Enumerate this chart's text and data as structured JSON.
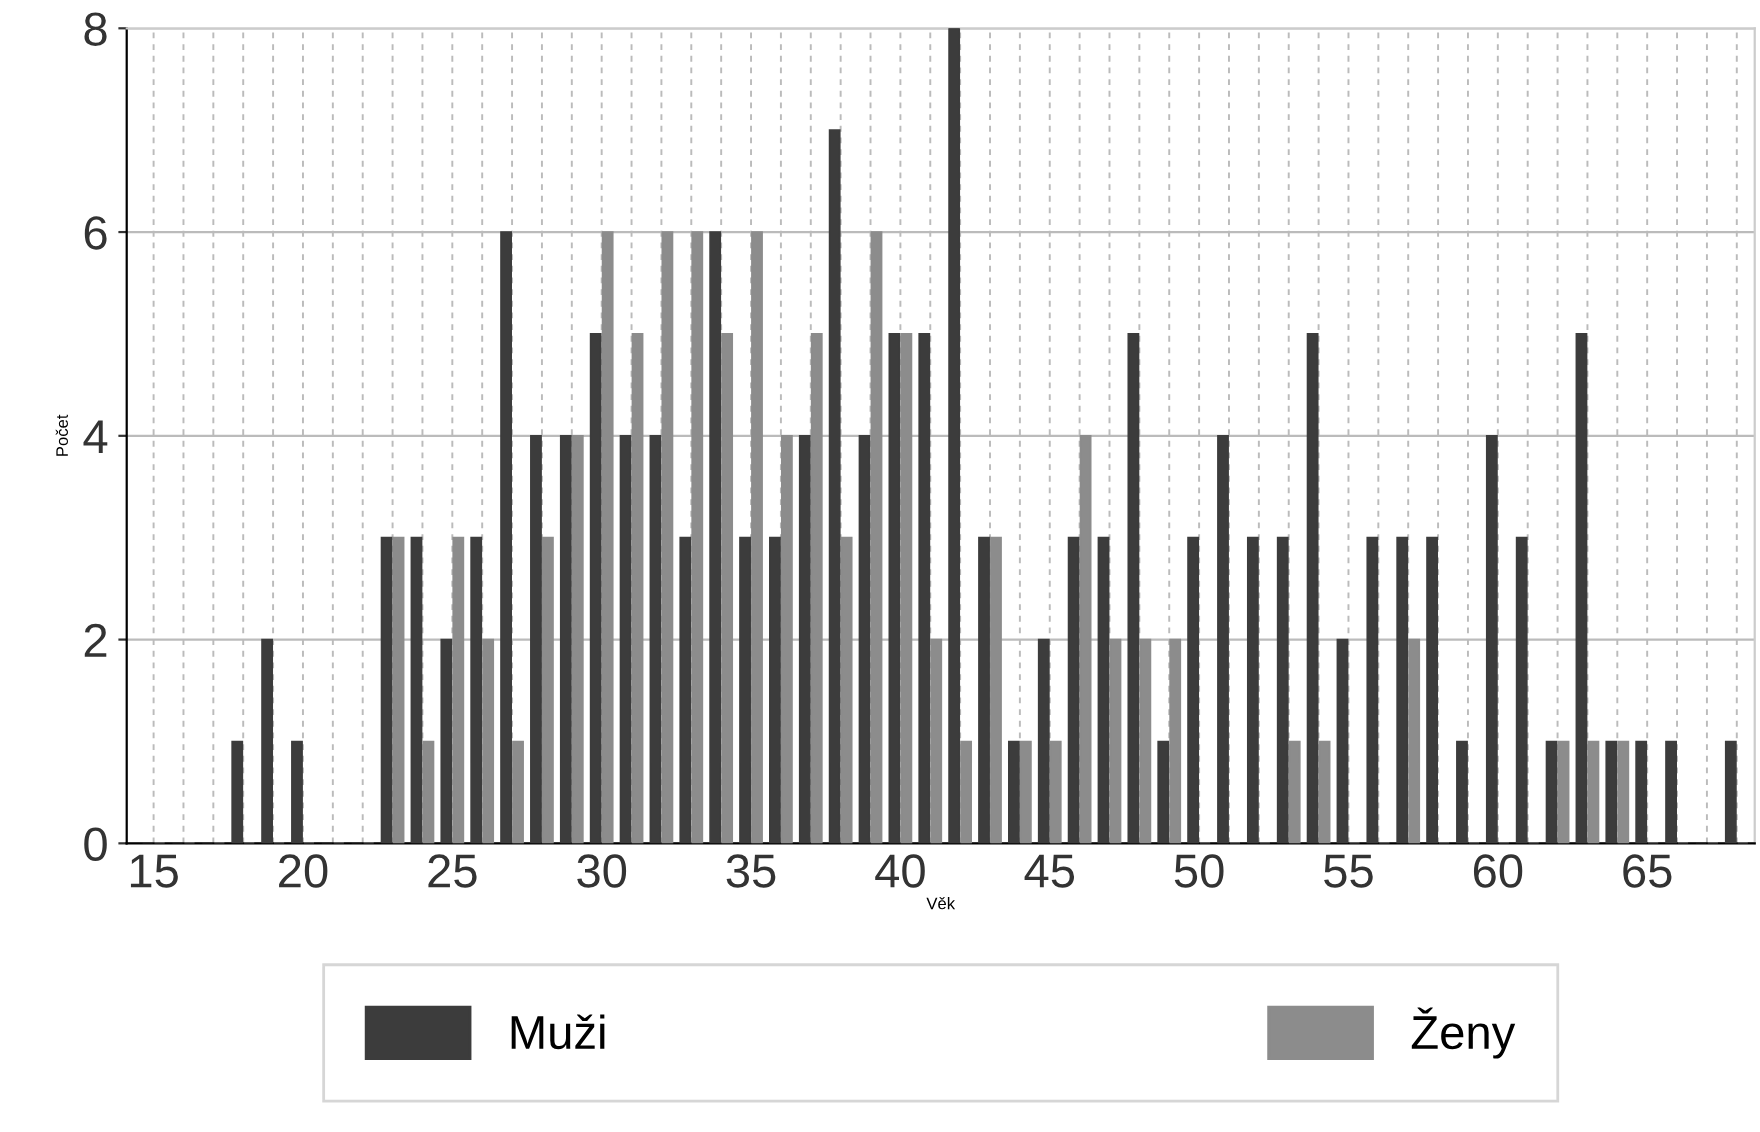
{
  "chart_data": {
    "type": "bar",
    "xlabel": "Věk",
    "ylabel": "Počet",
    "x": [
      15,
      16,
      17,
      18,
      19,
      20,
      21,
      22,
      23,
      24,
      25,
      26,
      27,
      28,
      29,
      30,
      31,
      32,
      33,
      34,
      35,
      36,
      37,
      38,
      39,
      40,
      41,
      42,
      43,
      44,
      45,
      46,
      47,
      48,
      49,
      50,
      51,
      52,
      53,
      54,
      55,
      56,
      57,
      58,
      59,
      60,
      61,
      62,
      63,
      64,
      65,
      66,
      67,
      68
    ],
    "series": [
      {
        "name": "Muži",
        "color": "#3c3c3c",
        "values": [
          0,
          0,
          0,
          1,
          2,
          1,
          0,
          0,
          3,
          3,
          2,
          3,
          6,
          4,
          4,
          5,
          4,
          4,
          3,
          6,
          3,
          3,
          4,
          7,
          4,
          5,
          5,
          8,
          3,
          1,
          2,
          3,
          3,
          5,
          1,
          3,
          4,
          3,
          3,
          5,
          2,
          3,
          3,
          3,
          1,
          4,
          3,
          1,
          5,
          1,
          1,
          1,
          0,
          1
        ]
      },
      {
        "name": "Ženy",
        "color": "#8c8c8c",
        "values": [
          0,
          0,
          0,
          0,
          0,
          0,
          0,
          0,
          3,
          1,
          3,
          2,
          1,
          3,
          4,
          6,
          5,
          6,
          6,
          5,
          6,
          4,
          5,
          3,
          6,
          5,
          2,
          1,
          3,
          1,
          1,
          4,
          2,
          2,
          2,
          0,
          0,
          0,
          1,
          1,
          0,
          0,
          2,
          0,
          0,
          0,
          0,
          1,
          1,
          1,
          0,
          0,
          0,
          0
        ]
      }
    ],
    "xlim": [
      14.1,
      68.6
    ],
    "xticks": [
      15,
      {
        "value": 16,
        "label": null
      },
      {
        "value": 17,
        "label": null
      },
      {
        "value": 18,
        "label": null
      },
      {
        "value": 19,
        "label": null
      },
      20,
      {
        "value": 21,
        "label": null
      },
      {
        "value": 22,
        "label": null
      },
      {
        "value": 23,
        "label": null
      },
      {
        "value": 24,
        "label": null
      },
      25,
      {
        "value": 26,
        "label": null
      },
      {
        "value": 27,
        "label": null
      },
      {
        "value": 28,
        "label": null
      },
      {
        "value": 29,
        "label": null
      },
      30,
      {
        "value": 31,
        "label": null
      },
      {
        "value": 32,
        "label": null
      },
      {
        "value": 33,
        "label": null
      },
      {
        "value": 34,
        "label": null
      },
      35,
      {
        "value": 36,
        "label": null
      },
      {
        "value": 37,
        "label": null
      },
      {
        "value": 38,
        "label": null
      },
      {
        "value": 39,
        "label": null
      },
      40,
      {
        "value": 41,
        "label": null
      },
      {
        "value": 42,
        "label": null
      },
      {
        "value": 43,
        "label": null
      },
      {
        "value": 44,
        "label": null
      },
      45,
      {
        "value": 46,
        "label": null
      },
      {
        "value": 47,
        "label": null
      },
      {
        "value": 48,
        "label": null
      },
      {
        "value": 49,
        "label": null
      },
      50,
      {
        "value": 51,
        "label": null
      },
      {
        "value": 52,
        "label": null
      },
      {
        "value": 53,
        "label": null
      },
      {
        "value": 54,
        "label": null
      },
      55,
      {
        "value": 56,
        "label": null
      },
      {
        "value": 57,
        "label": null
      },
      {
        "value": 58,
        "label": null
      },
      {
        "value": 59,
        "label": null
      },
      60,
      {
        "value": 61,
        "label": null
      },
      {
        "value": 62,
        "label": null
      },
      {
        "value": 63,
        "label": null
      },
      {
        "value": 64,
        "label": null
      },
      65,
      {
        "value": 66,
        "label": null
      },
      {
        "value": 67,
        "label": null
      },
      {
        "value": 68,
        "label": null
      }
    ],
    "ylim": [
      0,
      8
    ],
    "yticks": [
      0,
      2,
      4,
      6,
      8
    ],
    "grid": true,
    "legend": "bottom"
  }
}
